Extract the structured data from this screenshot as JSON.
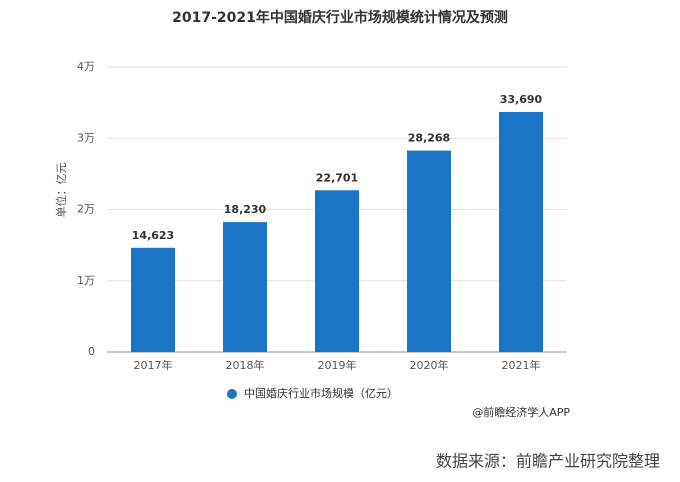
{
  "chart_data": {
    "type": "bar",
    "title": "2017-2021年中国婚庆行业市场规模统计情况及预测",
    "y_label": "单位：亿元",
    "categories": [
      "2017年",
      "2018年",
      "2019年",
      "2020年",
      "2021年"
    ],
    "series": [
      {
        "name": "中国婚庆行业市场规模（亿元）",
        "color": "#1a75c6",
        "values": [
          14623,
          18230,
          22701,
          28268,
          33690
        ],
        "value_labels": [
          "14,623",
          "18,230",
          "22,701",
          "28,268",
          "33,690"
        ]
      }
    ],
    "ylim": [
      0,
      40000
    ],
    "yticks": [
      0,
      {
        "value": 10000,
        "label": "1万"
      },
      {
        "value": 20000,
        "label": "2万"
      },
      {
        "value": 30000,
        "label": "3万"
      },
      {
        "value": 40000,
        "label": "4万"
      }
    ],
    "grid": true,
    "legend": "bottom",
    "annotation": "@前瞻经济学人APP",
    "source": "数据来源：前瞻产业研究院整理"
  }
}
